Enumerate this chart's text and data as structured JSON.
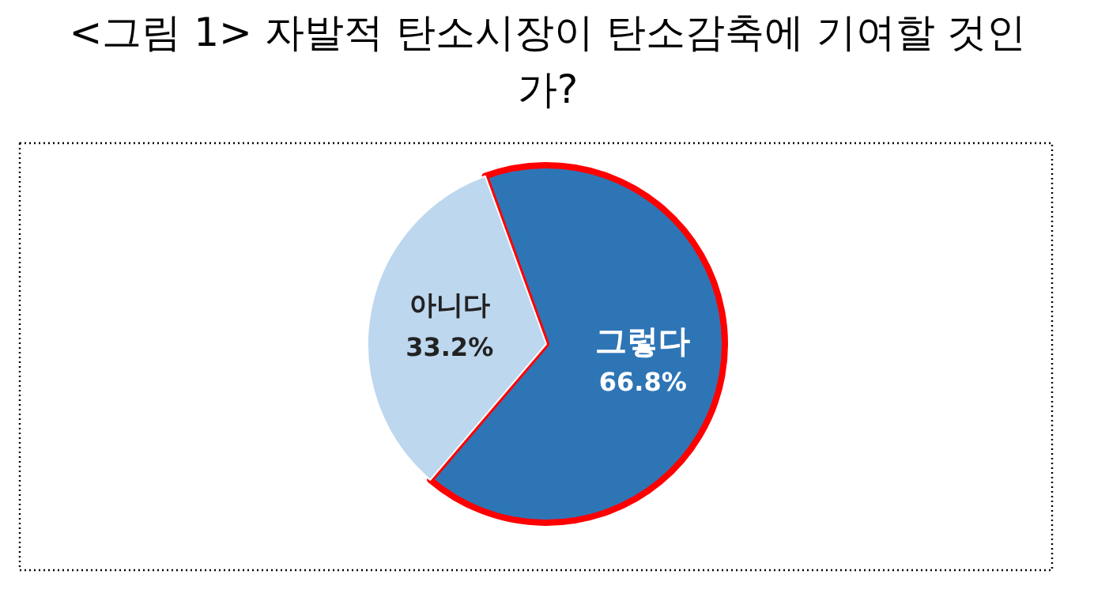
{
  "chart_data": {
    "type": "pie",
    "title": "<그림 1> 자발적 탄소시장이 탄소감축에 기여할 것인가?",
    "categories": [
      "그렇다",
      "아니다"
    ],
    "values": [
      66.8,
      33.2
    ],
    "colors": [
      "#2e75b6",
      "#bdd7ee"
    ],
    "value_labels": [
      "66.8%",
      "33.2%"
    ]
  }
}
